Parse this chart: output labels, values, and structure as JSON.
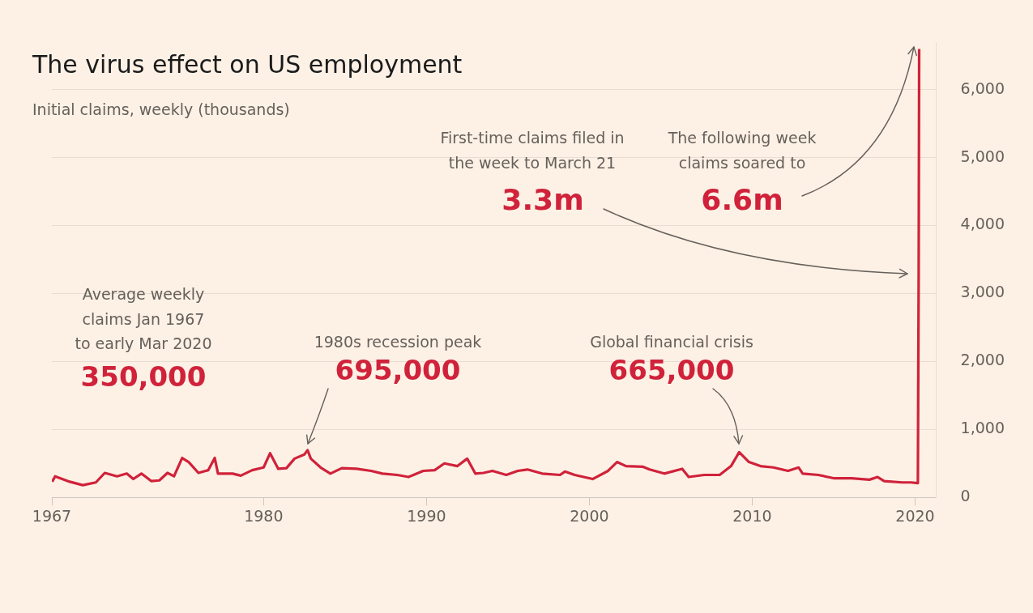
{
  "chart_data": {
    "type": "line",
    "title": "The virus effect on US employment",
    "subtitle": "Initial claims, weekly (thousands)",
    "series": [
      {
        "color": "#d0223a",
        "x": [
          1967.02,
          1967.2,
          1968.1,
          1968.9,
          1969.7,
          1970.25,
          1971.0,
          1971.6,
          1972.0,
          1972.5,
          1973.1,
          1973.6,
          1974.1,
          1974.5,
          1975.0,
          1975.4,
          1976.0,
          1976.6,
          1977.0,
          1977.2,
          1978.1,
          1978.6,
          1979.3,
          1980.0,
          1980.4,
          1980.9,
          1981.4,
          1981.9,
          1982.5,
          1982.7,
          1982.9,
          1983.5,
          1984.1,
          1984.8,
          1985.7,
          1986.6,
          1987.3,
          1988.2,
          1988.9,
          1989.8,
          1990.5,
          1991.1,
          1991.9,
          1992.5,
          1993.0,
          1993.5,
          1994.05,
          1994.9,
          1995.6,
          1996.2,
          1997.1,
          1998.2,
          1998.5,
          1999.1,
          2000.2,
          2001.15,
          2001.7,
          2002.25,
          2003.3,
          2003.7,
          2004.6,
          2005.7,
          2006.1,
          2007.05,
          2008.0,
          2008.7,
          2009.2,
          2009.8,
          2010.5,
          2011.3,
          2012.2,
          2012.85,
          2013.1,
          2014.05,
          2015.05,
          2016.1,
          2017.2,
          2017.7,
          2018.1,
          2019.2,
          2019.75,
          2020.17,
          2020.22,
          2020.25
        ],
        "values": [
          230,
          310,
          230,
          180,
          220,
          360,
          310,
          350,
          270,
          350,
          240,
          250,
          360,
          310,
          580,
          520,
          360,
          400,
          580,
          350,
          350,
          320,
          400,
          440,
          650,
          420,
          430,
          570,
          630,
          695,
          570,
          440,
          350,
          430,
          420,
          390,
          350,
          330,
          300,
          390,
          400,
          500,
          460,
          570,
          350,
          360,
          390,
          330,
          390,
          410,
          350,
          330,
          380,
          330,
          270,
          390,
          520,
          460,
          450,
          410,
          350,
          420,
          300,
          330,
          330,
          460,
          665,
          520,
          460,
          440,
          390,
          440,
          350,
          330,
          280,
          280,
          260,
          300,
          240,
          220,
          220,
          210,
          3300,
          6600
        ]
      }
    ],
    "xlim": [
      1967,
      2021.3
    ],
    "xticks": [
      1967,
      1980,
      1990,
      2000,
      2010,
      2020
    ],
    "ylim": [
      0,
      6700
    ],
    "yticks": [
      0,
      {
        "value": 1000,
        "label": "1,000"
      },
      {
        "value": 2000,
        "label": "2,000"
      },
      {
        "value": 3000,
        "label": "3,000"
      },
      {
        "value": 4000,
        "label": "4,000"
      },
      {
        "value": 5000,
        "label": "5,000"
      },
      {
        "value": 6000,
        "label": "6,000"
      }
    ],
    "grid": "y",
    "legend": false,
    "marker": "none",
    "line_style": "solid",
    "annotations": [
      "Average weekly\nclaims Jan 1967\nto early Mar 2020",
      "350,000",
      "1980s recession peak",
      "695,000",
      "Global financial crisis",
      "665,000",
      "First-time claims filed in\nthe week to March 21",
      "3.3m",
      "The following week\nclaims soared to",
      "6.6m"
    ]
  }
}
